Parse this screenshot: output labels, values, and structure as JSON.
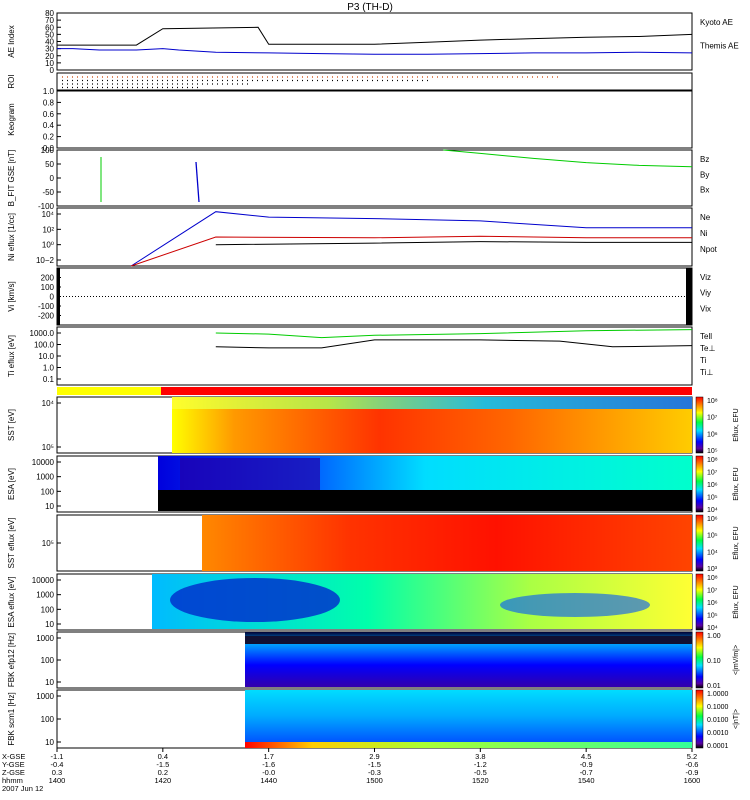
{
  "title": "P3 (TH-D)",
  "colors": {
    "red": "#cc0000",
    "green": "#00cc00",
    "blue": "#0000cc",
    "black": "#000000"
  },
  "chart_data": {
    "type": "line",
    "time_axis": {
      "range": [
        "1400",
        "1600"
      ],
      "ticks": [
        "1400",
        "1420",
        "1440",
        "1500",
        "1520",
        "1540",
        "1600"
      ],
      "tick_minutes": [
        0,
        20,
        40,
        60,
        80,
        100,
        120
      ],
      "rows": [
        {
          "label": "X-GSE",
          "values": [
            "-1.1",
            "0.4",
            "1.7",
            "2.9",
            "3.8",
            "4.5",
            "5.2"
          ]
        },
        {
          "label": "Y-GSE",
          "values": [
            "-0.4",
            "-1.5",
            "-1.6",
            "-1.5",
            "-1.2",
            "-0.9",
            "-0.6"
          ]
        },
        {
          "label": "Z-GSE",
          "values": [
            "0.3",
            "0.2",
            "-0.0",
            "-0.3",
            "-0.5",
            "-0.7",
            "-0.9"
          ]
        },
        {
          "label": "hhmm",
          "values": [
            "1400",
            "1420",
            "1440",
            "1500",
            "1520",
            "1540",
            "1600"
          ]
        }
      ],
      "date": "2007 Jun 12"
    },
    "panels": [
      {
        "id": "ae",
        "ylabel": "AE Index",
        "ylim": [
          0,
          80
        ],
        "ticks": [
          "0",
          "10",
          "20",
          "30",
          "40",
          "50",
          "60",
          "70",
          "80"
        ],
        "legend": [
          "Kyoto AE",
          "Themis AE"
        ],
        "series": [
          {
            "name": "Kyoto AE",
            "color": "blue",
            "points": [
              [
                0,
                30
              ],
              [
                3,
                30
              ],
              [
                8,
                28
              ],
              [
                15,
                28
              ],
              [
                20,
                30
              ],
              [
                23,
                28
              ],
              [
                30,
                25
              ],
              [
                40,
                24
              ],
              [
                50,
                23
              ],
              [
                60,
                22
              ],
              [
                70,
                22
              ],
              [
                80,
                23
              ],
              [
                90,
                24
              ],
              [
                100,
                24
              ],
              [
                110,
                25
              ],
              [
                120,
                24
              ]
            ]
          },
          {
            "name": "Themis AE",
            "color": "black",
            "points": [
              [
                0,
                35
              ],
              [
                15,
                35
              ],
              [
                20,
                58
              ],
              [
                38,
                60
              ],
              [
                40,
                36
              ],
              [
                60,
                36
              ],
              [
                70,
                39
              ],
              [
                80,
                42
              ],
              [
                90,
                44
              ],
              [
                100,
                46
              ],
              [
                110,
                47
              ],
              [
                120,
                50
              ]
            ]
          }
        ]
      },
      {
        "id": "roi",
        "ylabel": "ROI"
      },
      {
        "id": "keogram",
        "ylabel": "Keogram",
        "ylim": [
          0,
          1
        ],
        "ticks": [
          "0.0",
          "0.2",
          "0.4",
          "0.6",
          "0.8",
          "1.0"
        ]
      },
      {
        "id": "bfit",
        "ylabel": "B_FIT GSE [nT]",
        "ylim": [
          -100,
          100
        ],
        "ticks": [
          "-100",
          "-50",
          "0",
          "50",
          "100"
        ],
        "legend": [
          "Bz",
          "By",
          "Bx"
        ],
        "series": [
          {
            "name": "By",
            "color": "green",
            "points": [
              [
                73,
                100
              ],
              [
                80,
                88
              ],
              [
                90,
                70
              ],
              [
                100,
                55
              ],
              [
                110,
                45
              ],
              [
                120,
                40
              ]
            ]
          }
        ]
      },
      {
        "id": "ni",
        "ylabel": "Ni eflux [1/cc]",
        "tick_labels": [
          "10−2",
          "10⁰",
          "10²",
          "10⁴"
        ],
        "legend": [
          "Ne",
          "Ni",
          "Npot"
        ],
        "series": [
          {
            "name": "Ni",
            "color": "blue",
            "points": [
              [
                14,
                -3
              ],
              [
                30,
                4.3
              ],
              [
                40,
                3.6
              ],
              [
                60,
                3.4
              ],
              [
                80,
                3.1
              ],
              [
                100,
                2.2
              ],
              [
                120,
                2.2
              ]
            ]
          },
          {
            "name": "Ne",
            "color": "red",
            "points": [
              [
                14,
                -3
              ],
              [
                30,
                1
              ],
              [
                60,
                0.9
              ],
              [
                80,
                1.1
              ],
              [
                100,
                0.9
              ],
              [
                120,
                0.9
              ]
            ]
          },
          {
            "name": "Npot",
            "color": "black",
            "points": [
              [
                30,
                0
              ],
              [
                60,
                0.2
              ],
              [
                80,
                0.4
              ],
              [
                100,
                0.3
              ],
              [
                120,
                0.3
              ]
            ]
          }
        ]
      },
      {
        "id": "vi",
        "ylabel": "Vi [km/s]",
        "ylim": [
          -300,
          300
        ],
        "ticks": [
          "-200",
          "-100",
          "0",
          "100",
          "200"
        ],
        "legend": [
          "Viz",
          "Viy",
          "Vix"
        ]
      },
      {
        "id": "ti",
        "ylabel": "Ti eflux [eV]",
        "tick_labels": [
          "0.1",
          "1.0",
          "10.0",
          "100.0",
          "1000.0"
        ],
        "legend": [
          "Tell",
          "Te⊥",
          "Ti",
          "Ti⊥"
        ],
        "series": [
          {
            "name": "Ti",
            "color": "green",
            "points": [
              [
                30,
                3.0
              ],
              [
                40,
                2.9
              ],
              [
                50,
                2.6
              ],
              [
                60,
                2.8
              ],
              [
                80,
                2.95
              ],
              [
                100,
                3.2
              ],
              [
                120,
                3.3
              ]
            ]
          },
          {
            "name": "Tell",
            "color": "black",
            "points": [
              [
                30,
                1.8
              ],
              [
                40,
                1.7
              ],
              [
                50,
                1.7
              ],
              [
                60,
                2.4
              ],
              [
                80,
                2.4
              ],
              [
                95,
                2.3
              ],
              [
                105,
                1.8
              ],
              [
                120,
                1.9
              ]
            ]
          }
        ]
      },
      {
        "id": "sst1",
        "ylabel": "SST [eV]",
        "tick_labels": [
          "10⁵",
          "10⁴"
        ],
        "colorbar": [
          "10⁵",
          "10⁶",
          "10⁷",
          "10⁸"
        ],
        "colorbar_label": "Eflux, EFU"
      },
      {
        "id": "esa1",
        "ylabel": "ESA [eV]",
        "ticks": [
          "10",
          "100",
          "1000",
          "10000"
        ],
        "colorbar": [
          "10⁴",
          "10⁵",
          "10⁶",
          "10⁷",
          "10⁸"
        ],
        "colorbar_label": "Eflux, EFU"
      },
      {
        "id": "sst2",
        "ylabel": "SST eflux [eV]",
        "tick_labels": [
          "10⁵"
        ],
        "colorbar": [
          "10³",
          "10⁴",
          "10⁵",
          "10⁶"
        ],
        "colorbar_label": "Eflux, EFU"
      },
      {
        "id": "esa2",
        "ylabel": "ESA eflux [eV]",
        "ticks": [
          "10",
          "100",
          "1000",
          "10000"
        ],
        "colorbar": [
          "10⁴",
          "10⁵",
          "10⁶",
          "10⁷",
          "10⁸"
        ],
        "colorbar_label": "Eflux, EFU"
      },
      {
        "id": "fbk1",
        "ylabel": "FBK efp12 [Hz]",
        "ticks": [
          "10",
          "100",
          "1000"
        ],
        "colorbar": [
          "0.01",
          "0.10",
          "1.00"
        ],
        "colorbar_label": "<|mV/m|>"
      },
      {
        "id": "fbk2",
        "ylabel": "FBK scm1 [Hz]",
        "ticks": [
          "10",
          "100",
          "1000"
        ],
        "colorbar": [
          "0.0001",
          "0.0010",
          "0.0100",
          "0.1000",
          "1.0000"
        ],
        "colorbar_label": "<|nT|>"
      }
    ]
  }
}
